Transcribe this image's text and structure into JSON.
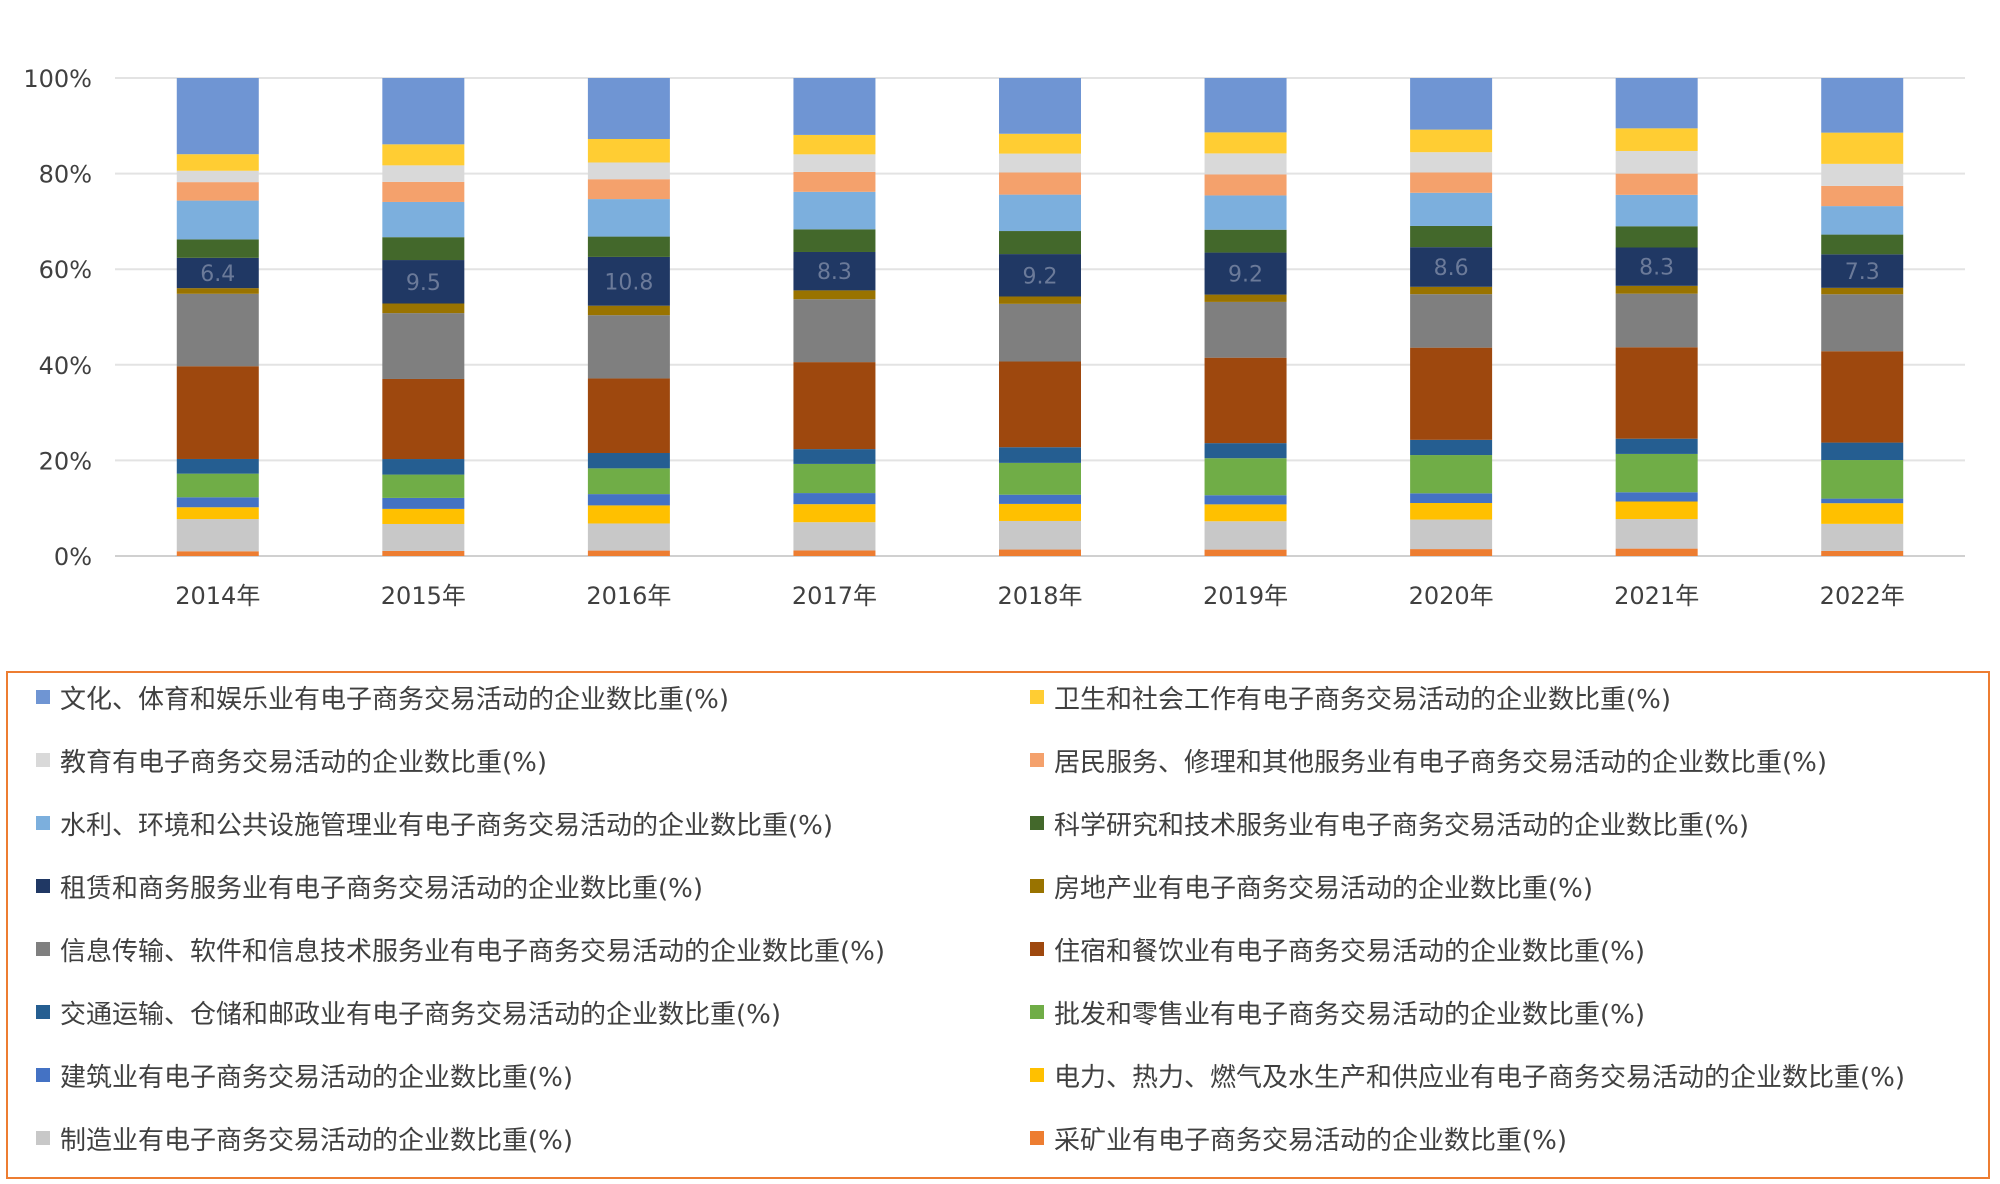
{
  "chart_data": {
    "type": "bar",
    "stacked": "percent",
    "categories": [
      "2014年",
      "2015年",
      "2016年",
      "2017年",
      "2018年",
      "2019年",
      "2020年",
      "2021年",
      "2022年"
    ],
    "y_ticks": [
      "0%",
      "20%",
      "40%",
      "60%",
      "80%",
      "100%"
    ],
    "ylim": [
      0,
      100
    ],
    "grid": true,
    "legend_position": "bottom",
    "data_label_series": "租赁和商务服务业有电子商务交易活动的企业数比重(%)",
    "series": [
      {
        "name": "采矿业有电子商务交易活动的企业数比重(%)",
        "color": "#ed7d31",
        "values": [
          1.0,
          1.1,
          1.2,
          1.2,
          1.4,
          1.4,
          1.5,
          1.6,
          1.1
        ]
      },
      {
        "name": "制造业有电子商务交易活动的企业数比重(%)",
        "color": "#c8c8c8",
        "values": [
          6.8,
          5.9,
          6.0,
          6.1,
          6.2,
          6.2,
          6.4,
          6.4,
          5.9
        ]
      },
      {
        "name": "电力、热力、燃气及水生产和供应业有电子商务交易活动的企业数比重(%)",
        "color": "#ffc000",
        "values": [
          2.5,
          3.3,
          4.0,
          3.9,
          3.7,
          3.7,
          3.6,
          3.8,
          4.5
        ]
      },
      {
        "name": "建筑业有电子商务交易活动的企业数比重(%)",
        "color": "#4472c4",
        "values": [
          2.1,
          2.4,
          2.5,
          2.4,
          2.0,
          2.0,
          2.1,
          2.0,
          1.0
        ]
      },
      {
        "name": "批发和零售业有电子商务交易活动的企业数比重(%)",
        "color": "#70ad47",
        "values": [
          5.0,
          5.1,
          5.7,
          6.3,
          6.9,
          8.1,
          8.3,
          8.3,
          8.4
        ]
      },
      {
        "name": "交通运输、仓储和邮政业有电子商务交易活动的企业数比重(%)",
        "color": "#255e91",
        "values": [
          3.1,
          3.4,
          3.4,
          3.2,
          3.4,
          3.3,
          3.3,
          3.3,
          3.8
        ]
      },
      {
        "name": "住宿和餐饮业有电子商务交易活动的企业数比重(%)",
        "color": "#9e480e",
        "values": [
          19.6,
          17.5,
          16.5,
          18.8,
          18.6,
          18.7,
          20.0,
          19.8,
          19.9
        ]
      },
      {
        "name": "信息传输、软件和信息技术服务业有电子商务交易活动的企业数比重(%)",
        "color": "#7f7f7f",
        "values": [
          15.3,
          14.4,
          14.0,
          13.6,
          12.5,
          12.2,
          11.6,
          11.6,
          12.4
        ]
      },
      {
        "name": "房地产业有电子商务交易活动的企业数比重(%)",
        "color": "#997300",
        "values": [
          1.2,
          2.1,
          2.1,
          1.9,
          1.6,
          1.6,
          1.6,
          1.7,
          1.4
        ]
      },
      {
        "name": "租赁和商务服务业有电子商务交易活动的企业数比重(%)",
        "color": "#203864",
        "values": [
          6.4,
          9.5,
          10.8,
          8.3,
          9.2,
          9.2,
          8.6,
          8.3,
          7.3
        ]
      },
      {
        "name": "科学研究和技术服务业有电子商务交易活动的企业数比重(%)",
        "color": "#43682b",
        "values": [
          3.9,
          5.0,
          4.5,
          4.9,
          5.0,
          5.0,
          4.6,
          4.6,
          4.3
        ]
      },
      {
        "name": "水利、环境和公共设施管理业有电子商务交易活动的企业数比重(%)",
        "color": "#7cafdd",
        "values": [
          8.2,
          7.7,
          8.3,
          8.1,
          7.9,
          7.5,
          7.2,
          6.8,
          6.2
        ]
      },
      {
        "name": "居民服务、修理和其他服务业有电子商务交易活动的企业数比重(%)",
        "color": "#f4a16c",
        "values": [
          3.9,
          4.4,
          4.4,
          4.3,
          4.8,
          4.6,
          4.4,
          4.6,
          4.4
        ]
      },
      {
        "name": "教育有电子商务交易活动的企业数比重(%)",
        "color": "#d9d9d9",
        "values": [
          2.4,
          3.6,
          3.7,
          3.8,
          4.1,
          4.6,
          4.4,
          4.9,
          4.8
        ]
      },
      {
        "name": "卫生和社会工作有电子商务交易活动的企业数比重(%)",
        "color": "#ffcd33",
        "values": [
          3.5,
          4.6,
          5.2,
          4.2,
          4.3,
          4.6,
          4.9,
          4.9,
          6.8
        ]
      },
      {
        "name": "文化、体育和娱乐业有电子商务交易活动的企业数比重(%)",
        "color": "#6f95d3",
        "values": [
          16.1,
          14.5,
          13.5,
          12.3,
          12.1,
          11.9,
          11.2,
          10.9,
          11.9
        ]
      }
    ]
  },
  "legend": {
    "items": [
      {
        "label": "文化、体育和娱乐业有电子商务交易活动的企业数比重(%)",
        "color": "#6f95d3"
      },
      {
        "label": "卫生和社会工作有电子商务交易活动的企业数比重(%)",
        "color": "#ffcd33"
      },
      {
        "label": "教育有电子商务交易活动的企业数比重(%)",
        "color": "#d9d9d9"
      },
      {
        "label": "居民服务、修理和其他服务业有电子商务交易活动的企业数比重(%)",
        "color": "#f4a16c"
      },
      {
        "label": "水利、环境和公共设施管理业有电子商务交易活动的企业数比重(%)",
        "color": "#7cafdd"
      },
      {
        "label": "科学研究和技术服务业有电子商务交易活动的企业数比重(%)",
        "color": "#43682b"
      },
      {
        "label": "租赁和商务服务业有电子商务交易活动的企业数比重(%)",
        "color": "#203864"
      },
      {
        "label": "房地产业有电子商务交易活动的企业数比重(%)",
        "color": "#997300"
      },
      {
        "label": "信息传输、软件和信息技术服务业有电子商务交易活动的企业数比重(%)",
        "color": "#7f7f7f"
      },
      {
        "label": "住宿和餐饮业有电子商务交易活动的企业数比重(%)",
        "color": "#9e480e"
      },
      {
        "label": "交通运输、仓储和邮政业有电子商务交易活动的企业数比重(%)",
        "color": "#255e91"
      },
      {
        "label": "批发和零售业有电子商务交易活动的企业数比重(%)",
        "color": "#70ad47"
      },
      {
        "label": "建筑业有电子商务交易活动的企业数比重(%)",
        "color": "#4472c4"
      },
      {
        "label": "电力、热力、燃气及水生产和供应业有电子商务交易活动的企业数比重(%)",
        "color": "#ffc000"
      },
      {
        "label": "制造业有电子商务交易活动的企业数比重(%)",
        "color": "#c8c8c8"
      },
      {
        "label": "采矿业有电子商务交易活动的企业数比重(%)",
        "color": "#ed7d31"
      }
    ]
  }
}
